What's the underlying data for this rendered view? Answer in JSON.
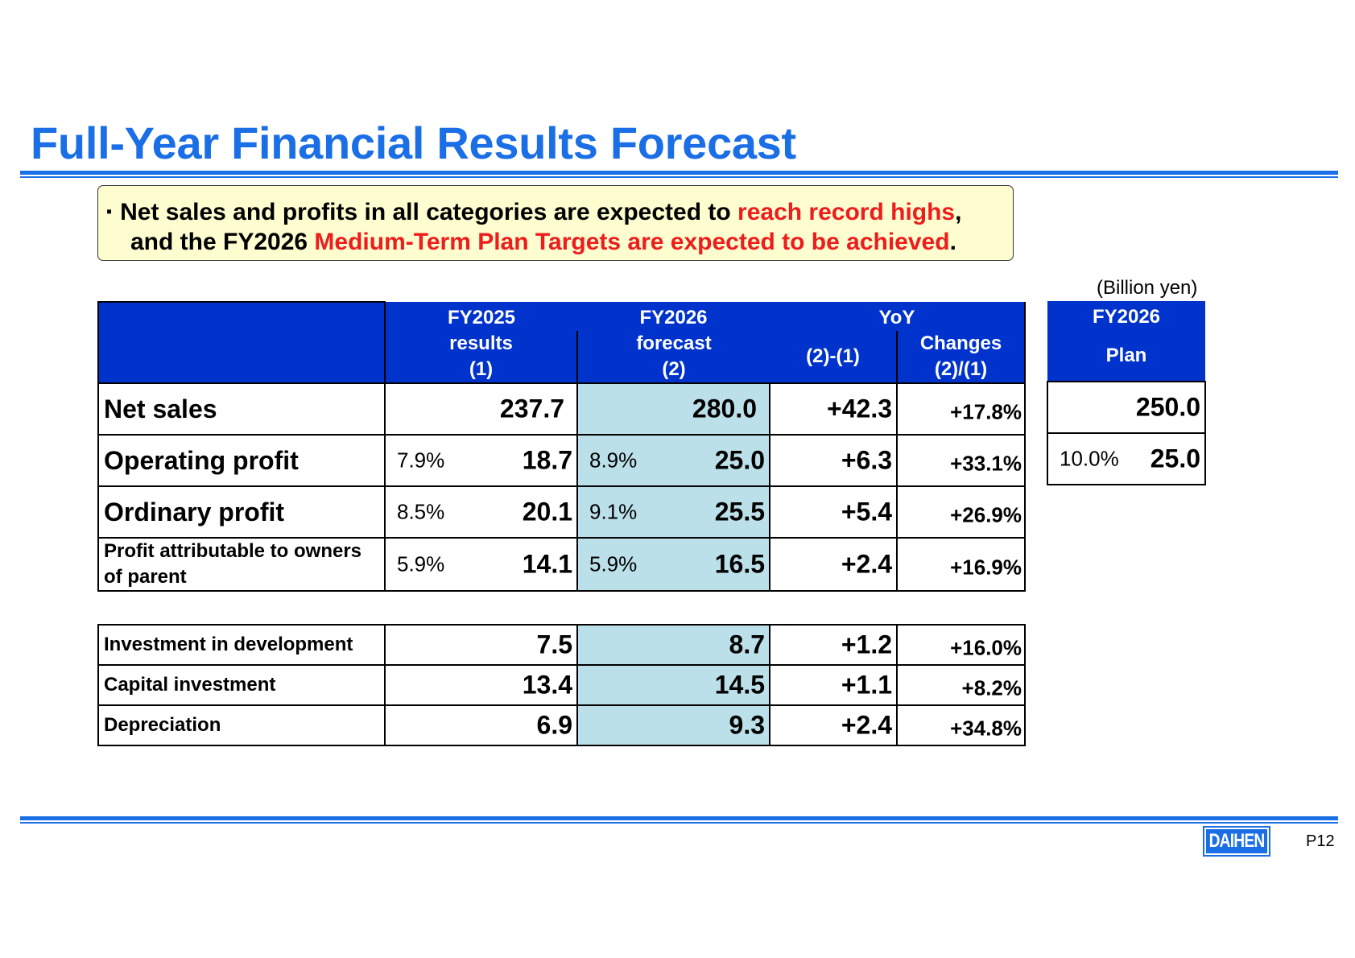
{
  "title": "Full-Year Financial Results Forecast",
  "callout": {
    "bullet": "▪",
    "line1_a": "Net sales and profits in all categories are expected to ",
    "line1_red": "reach record highs",
    "line1_b": ",",
    "line2_a": "and the FY2026 ",
    "line2_red": "Medium-Term Plan Targets are expected to be achieved",
    "line2_b": "."
  },
  "unit": "(Billion yen)",
  "headers": {
    "fy2025_top": "FY2025",
    "fy2025_mid": "results",
    "fy2025_bot": "(1)",
    "fy2026_top": "FY2026",
    "fy2026_mid": "forecast",
    "fy2026_bot": "(2)",
    "yoy": "YoY",
    "diff": "(2)-(1)",
    "changes_top": "Changes",
    "changes_bot": "(2)/(1)",
    "plan_top": "FY2026",
    "plan_bot": "Plan"
  },
  "rows": [
    {
      "label": "Net sales",
      "fy25_pct": "",
      "fy25": "237.7",
      "fy26_pct": "",
      "fy26": "280.0",
      "diff": "+42.3",
      "change": "+17.8%",
      "plan_pct": "",
      "plan": "250.0"
    },
    {
      "label": "Operating profit",
      "fy25_pct": "7.9%",
      "fy25": "18.7",
      "fy26_pct": "8.9%",
      "fy26": "25.0",
      "diff": "+6.3",
      "change": "+33.1%",
      "plan_pct": "10.0%",
      "plan": "25.0"
    },
    {
      "label": "Ordinary profit",
      "fy25_pct": "8.5%",
      "fy25": "20.1",
      "fy26_pct": "9.1%",
      "fy26": "25.5",
      "diff": "+5.4",
      "change": "+26.9%"
    },
    {
      "label_line1": "Profit attributable to owners",
      "label_line2": "of parent",
      "fy25_pct": "5.9%",
      "fy25": "14.1",
      "fy26_pct": "5.9%",
      "fy26": "16.5",
      "diff": "+2.4",
      "change": "+16.9%"
    }
  ],
  "investments": [
    {
      "label": "Investment in development",
      "fy25": "7.5",
      "fy26": "8.7",
      "diff": "+1.2",
      "change": "+16.0%"
    },
    {
      "label": "Capital investment",
      "fy25": "13.4",
      "fy26": "14.5",
      "diff": "+1.1",
      "change": "+8.2%"
    },
    {
      "label": "Depreciation",
      "fy25": "6.9",
      "fy26": "9.3",
      "diff": "+2.4",
      "change": "+34.8%"
    }
  ],
  "logo_text": "DAIHEN",
  "page_number": "P12",
  "colors": {
    "accent": "#1a6ee6",
    "header_bg": "#0033cc",
    "forecast_bg": "#bce0e9",
    "callout_bg": "#fdfdcf",
    "highlight_red": "#ee1c1c"
  }
}
